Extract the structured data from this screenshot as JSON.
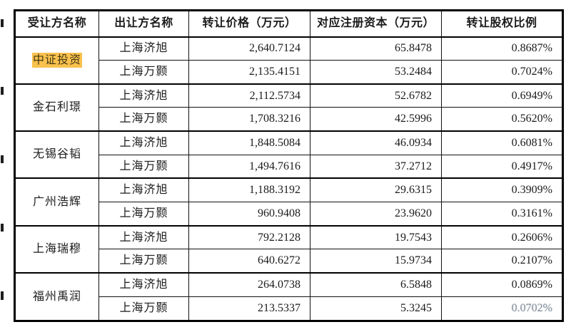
{
  "table": {
    "headers": [
      "受让方名称",
      "出让方名称",
      "转让价格（万元）",
      "对应注册资本（万元）",
      "转让股权比例"
    ],
    "groups": [
      {
        "transferee": "中证投资",
        "rows": [
          {
            "transferor": "上海济旭",
            "price": "2,640.7124",
            "capital": "65.8478",
            "ratio": "0.8687%"
          },
          {
            "transferor": "上海万颢",
            "price": "2,135.4151",
            "capital": "53.2484",
            "ratio": "0.7024%"
          }
        ]
      },
      {
        "transferee": "金石利璟",
        "rows": [
          {
            "transferor": "上海济旭",
            "price": "2,112.5734",
            "capital": "52.6782",
            "ratio": "0.6949%"
          },
          {
            "transferor": "上海万颢",
            "price": "1,708.3216",
            "capital": "42.5996",
            "ratio": "0.5620%"
          }
        ]
      },
      {
        "transferee": "无锡谷韬",
        "rows": [
          {
            "transferor": "上海济旭",
            "price": "1,848.5084",
            "capital": "46.0934",
            "ratio": "0.6081%"
          },
          {
            "transferor": "上海万颢",
            "price": "1,494.7616",
            "capital": "37.2712",
            "ratio": "0.4917%"
          }
        ]
      },
      {
        "transferee": "广州浩辉",
        "rows": [
          {
            "transferor": "上海济旭",
            "price": "1,188.3192",
            "capital": "29.6315",
            "ratio": "0.3909%"
          },
          {
            "transferor": "上海万颢",
            "price": "960.9408",
            "capital": "23.9620",
            "ratio": "0.3161%"
          }
        ]
      },
      {
        "transferee": "上海瑞穆",
        "rows": [
          {
            "transferor": "上海济旭",
            "price": "792.2128",
            "capital": "19.7543",
            "ratio": "0.2606%"
          },
          {
            "transferor": "上海万颢",
            "price": "640.6272",
            "capital": "15.9734",
            "ratio": "0.2107%"
          }
        ]
      },
      {
        "transferee": "福州禹润",
        "rows": [
          {
            "transferor": "上海济旭",
            "price": "264.0738",
            "capital": "6.5848",
            "ratio": "0.0869%"
          },
          {
            "transferor": "上海万颢",
            "price": "213.5337",
            "capital": "5.3245",
            "ratio": "0.0702%"
          }
        ]
      }
    ]
  },
  "colors": {
    "highlight": "#f9c24d",
    "faded_text": "#8f99a5",
    "border": "#000000"
  }
}
